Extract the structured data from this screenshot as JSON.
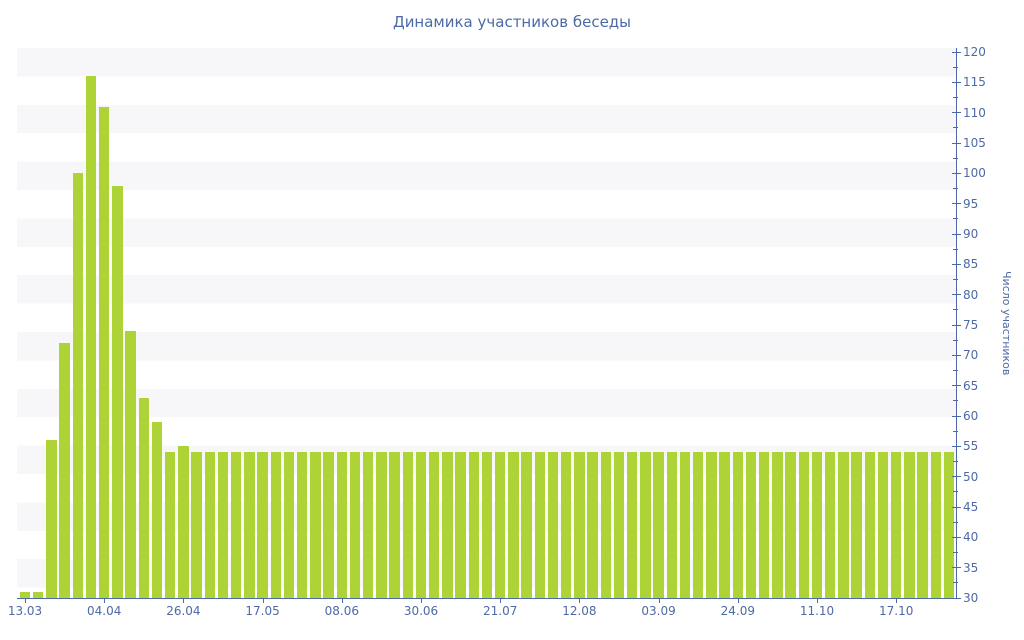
{
  "chart_data": {
    "type": "bar",
    "title": "Динамика участников беседы",
    "ylabel": "Число участников",
    "xlabel": "",
    "ylim": [
      30,
      120
    ],
    "ytick_step": 5,
    "yminor_step": 2.5,
    "legend": "none",
    "grid": "striped-horizontal-bands",
    "bar_color": "#add336",
    "axis_color": "#4d6aa6",
    "stripe_color": "#f7f7f9",
    "xtick_labels": [
      "13.03",
      "04.04",
      "26.04",
      "17.05",
      "08.06",
      "30.06",
      "21.07",
      "12.08",
      "03.09",
      "24.09",
      "11.10",
      "17.10"
    ],
    "xtick_indices": [
      0,
      6,
      12,
      18,
      24,
      30,
      36,
      42,
      48,
      54,
      60,
      66
    ],
    "values": [
      31,
      31,
      56,
      72,
      100,
      116,
      111,
      98,
      74,
      63,
      59,
      54,
      55,
      54,
      54,
      54,
      54,
      54,
      54,
      54,
      54,
      54,
      54,
      54,
      54,
      54,
      54,
      54,
      54,
      54,
      54,
      54,
      54,
      54,
      54,
      54,
      54,
      54,
      54,
      54,
      54,
      54,
      54,
      54,
      54,
      54,
      54,
      54,
      54,
      54,
      54,
      54,
      54,
      54,
      54,
      54,
      54,
      54,
      54,
      54,
      54,
      54,
      54,
      54,
      54,
      54,
      54,
      54,
      54,
      54,
      54
    ]
  }
}
